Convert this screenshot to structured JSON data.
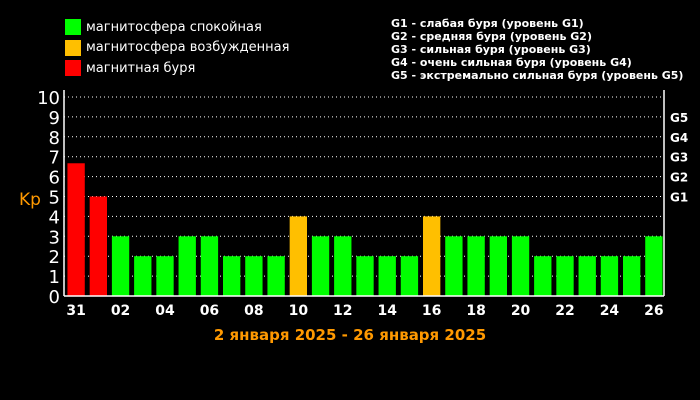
{
  "legend": [
    {
      "label": "магнитосфера спокойная",
      "color": "#00ff00"
    },
    {
      "label": "магнитосфера возбужденная",
      "color": "#ffbf00"
    },
    {
      "label": "магнитная буря",
      "color": "#ff0000"
    }
  ],
  "storm_levels": [
    "G1 - слабая буря (уровень G1)",
    "G2 - средняя буря (уровень G2)",
    "G3 - сильная буря (уровень G3)",
    "G4 - очень сильная буря (уровень G4)",
    "G5 - экстремально сильная буря (уровень G5)"
  ],
  "chart_data": {
    "type": "bar",
    "ylabel": "Kp",
    "xlabel": "2 января 2025 - 26 января 2025",
    "ylim": [
      0,
      10
    ],
    "y_ticks": [
      "0",
      "1",
      "2",
      "3",
      "4",
      "5",
      "6",
      "7",
      "8",
      "9",
      "10"
    ],
    "right_ticks": [
      {
        "label": "G1",
        "value": 5
      },
      {
        "label": "G2",
        "value": 6
      },
      {
        "label": "G3",
        "value": 7
      },
      {
        "label": "G4",
        "value": 8
      },
      {
        "label": "G5",
        "value": 9
      }
    ],
    "x_tick_labels": [
      {
        "label": "31",
        "index": 0
      },
      {
        "label": "02",
        "index": 2
      },
      {
        "label": "04",
        "index": 4
      },
      {
        "label": "06",
        "index": 6
      },
      {
        "label": "08",
        "index": 8
      },
      {
        "label": "10",
        "index": 10
      },
      {
        "label": "12",
        "index": 12
      },
      {
        "label": "14",
        "index": 14
      },
      {
        "label": "16",
        "index": 16
      },
      {
        "label": "18",
        "index": 18
      },
      {
        "label": "20",
        "index": 20
      },
      {
        "label": "22",
        "index": 22
      },
      {
        "label": "24",
        "index": 24
      },
      {
        "label": "26",
        "index": 26
      }
    ],
    "values": [
      6.67,
      5,
      3,
      2,
      2,
      3,
      3,
      2,
      2,
      2,
      4,
      3,
      3,
      2,
      2,
      2,
      4,
      3,
      3,
      3,
      3,
      2,
      2,
      2,
      2,
      2,
      3
    ],
    "bar_colors": [
      "#ff0000",
      "#ff0000",
      "#00ff00",
      "#00ff00",
      "#00ff00",
      "#00ff00",
      "#00ff00",
      "#00ff00",
      "#00ff00",
      "#00ff00",
      "#ffbf00",
      "#00ff00",
      "#00ff00",
      "#00ff00",
      "#00ff00",
      "#00ff00",
      "#ffbf00",
      "#00ff00",
      "#00ff00",
      "#00ff00",
      "#00ff00",
      "#00ff00",
      "#00ff00",
      "#00ff00",
      "#00ff00",
      "#00ff00",
      "#00ff00"
    ],
    "grid": true,
    "accent_color": "#ff9900"
  }
}
